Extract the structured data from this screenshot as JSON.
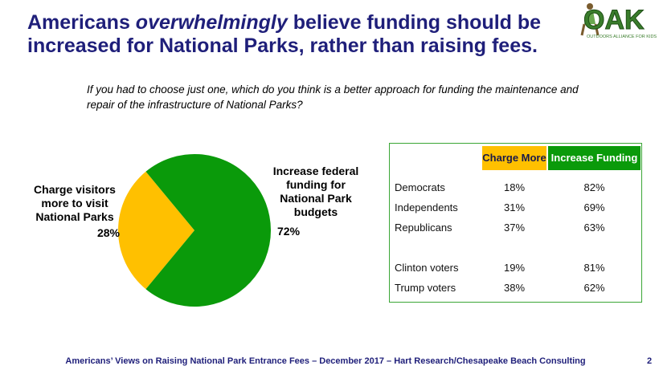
{
  "title": {
    "part1": "Americans ",
    "emphasis": "overwhelmingly",
    "part2": " believe funding should be increased for National Parks, rather than raising fees."
  },
  "logo": {
    "text": "OAK",
    "tagline": "OUTDOORS ALLIANCE FOR KIDS"
  },
  "question": "If you had to choose just one, which do you think is a better approach for funding the maintenance and repair of the infrastructure of National Parks?",
  "chart_data": {
    "type": "pie",
    "slices": [
      {
        "label": "Charge visitors more to visit National Parks",
        "value": 28,
        "value_label": "28%",
        "color": "#ffc000"
      },
      {
        "label": "Increase federal funding for National Park budgets",
        "value": 72,
        "value_label": "72%",
        "color": "#0a9a0a"
      }
    ]
  },
  "table": {
    "headers": [
      "Charge More",
      "Increase Funding"
    ],
    "header_colors": [
      "#ffc000",
      "#0a9a0a"
    ],
    "rows": [
      {
        "group": "Democrats",
        "charge": "18%",
        "increase": "82%"
      },
      {
        "group": "Independents",
        "charge": "31%",
        "increase": "69%"
      },
      {
        "group": "Republicans",
        "charge": "37%",
        "increase": "63%"
      },
      {
        "group": "Clinton voters",
        "charge": "19%",
        "increase": "81%"
      },
      {
        "group": "Trump voters",
        "charge": "38%",
        "increase": "62%"
      }
    ]
  },
  "footer": "Americans’ Views on Raising National Park Entrance Fees – December 2017 – Hart Research/Chesapeake Beach Consulting",
  "page_number": "2"
}
